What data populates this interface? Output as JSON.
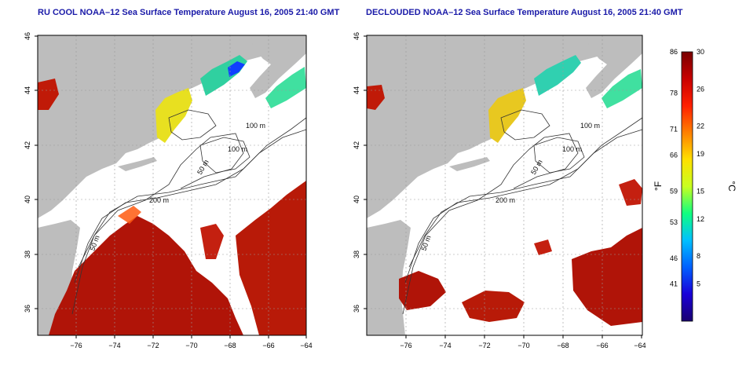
{
  "panels": [
    {
      "title": "RU COOL NOAA–12 Sea Surface Temperature August 16, 2005 21:40 GMT",
      "variant": "cloudy"
    },
    {
      "title": "DECLOUDED NOAA–12 Sea Surface Temperature August 16, 2005 21:40 GMT",
      "variant": "declouded"
    }
  ],
  "map": {
    "lon_range": [
      -77,
      -63
    ],
    "lat_range": [
      35,
      46
    ],
    "lon_ticks": [
      "−76",
      "−74",
      "−72",
      "−70",
      "−68",
      "−66",
      "−64"
    ],
    "lon_tick_values": [
      -76,
      -74,
      -72,
      -70,
      -68,
      -66,
      -64
    ],
    "lat_ticks": [
      "36",
      "38",
      "40",
      "42",
      "44",
      "46"
    ],
    "lat_tick_values": [
      36,
      38,
      40,
      42,
      44,
      46
    ],
    "contour_labels": [
      "100 m",
      "100 m",
      "50 m",
      "200 m",
      "50 m"
    ],
    "colors": {
      "land": "#bdbdbd",
      "cloud": "#ffffff",
      "grid": "#9a9a9a"
    }
  },
  "colorbar": {
    "unit_left": "°F",
    "unit_right": "°C",
    "f_labels": [
      "86",
      "78",
      "71",
      "66",
      "59",
      "53",
      "46",
      "41"
    ],
    "f_values": [
      86,
      78,
      71,
      66,
      59,
      53,
      46,
      41
    ],
    "c_labels": [
      "30",
      "26",
      "22",
      "19",
      "15",
      "12",
      "8",
      "5"
    ],
    "c_values": [
      30,
      26,
      22,
      19,
      15,
      12,
      8,
      5
    ],
    "c_range": [
      1,
      30
    ],
    "stops": [
      "#1a0070",
      "#1a00d8",
      "#0060ff",
      "#00c0ff",
      "#10ff80",
      "#c8ff20",
      "#ffe000",
      "#ff8000",
      "#ff2000",
      "#c80000",
      "#780000"
    ]
  }
}
